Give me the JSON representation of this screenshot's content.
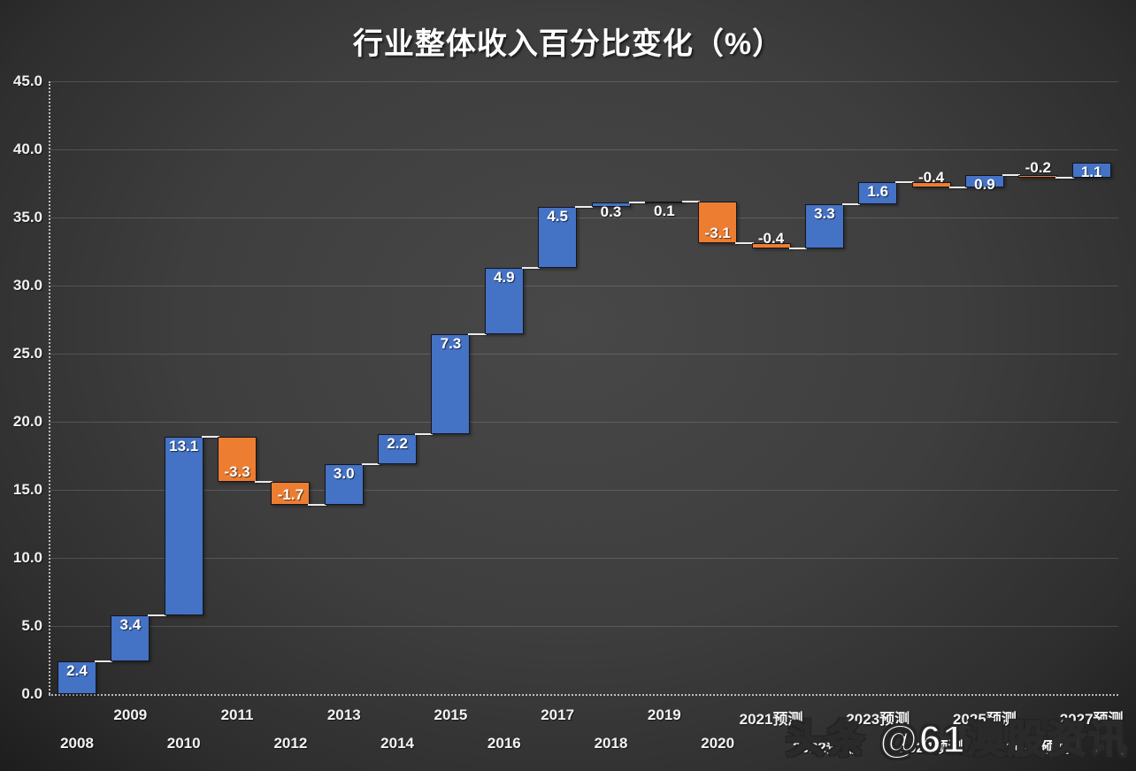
{
  "chart_data": {
    "type": "bar",
    "subtype": "waterfall",
    "title": "行业整体收入百分比变化（%）",
    "categories": [
      "2008",
      "2009",
      "2010",
      "2011",
      "2012",
      "2013",
      "2014",
      "2015",
      "2016",
      "2017",
      "2018",
      "2019",
      "2020",
      "2021预测",
      "2022预测",
      "2023预测",
      "2024预测",
      "2025预测",
      "2026预测",
      "2027预测"
    ],
    "values": [
      2.4,
      3.4,
      13.1,
      -3.3,
      -1.7,
      3.0,
      2.2,
      7.3,
      4.9,
      4.5,
      0.3,
      0.1,
      -3.1,
      -0.4,
      3.3,
      1.6,
      -0.4,
      0.9,
      -0.2,
      1.1
    ],
    "labels": [
      "2.4",
      "3.4",
      "13.1",
      "-3.3",
      "-1.7",
      "3.0",
      "2.2",
      "7.3",
      "4.9",
      "4.5",
      "0.3",
      "0.1",
      "-3.1",
      "-0.4",
      "3.3",
      "1.6",
      "-0.4",
      "0.9",
      "-0.2",
      "1.1"
    ],
    "xlabel": "",
    "ylabel": "",
    "ylim": [
      0,
      45
    ],
    "ytick_labels": [
      "0.0",
      "5.0",
      "10.0",
      "15.0",
      "20.0",
      "25.0",
      "30.0",
      "35.0",
      "40.0",
      "45.0"
    ],
    "grid": true,
    "legend": "none",
    "colors": {
      "increase": "#4472c4",
      "decrease": "#ed7d31",
      "bar_border": "#15151d",
      "connector": "#ececec",
      "label_text": "#ffffff",
      "background_center": "#484848",
      "background_edge": "#1d1d1d"
    }
  },
  "watermark": {
    "text": "头条 @61澳股资讯"
  }
}
